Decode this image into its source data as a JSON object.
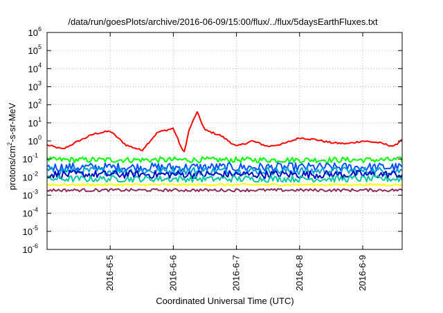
{
  "chart_data": {
    "type": "line",
    "title": "/data/run/goesPlots/archive/2016-06-09/15:00/flux/../flux/5daysEarthFluxes.txt",
    "xlabel": "Coordinated Universal Time (UTC)",
    "ylabel_base": "protons/cm",
    "ylabel_sup": "2",
    "ylabel_rest": "-s-sr-MeV",
    "y_scale": "log",
    "ylim": [
      1e-06,
      1000000
    ],
    "y_tick_exponents": [
      -6,
      -5,
      -4,
      -3,
      -2,
      -1,
      0,
      1,
      2,
      3,
      4,
      5,
      6
    ],
    "y_tick_base": "10",
    "xlim": [
      "2016-06-04 00:00",
      "2016-06-09 15:00"
    ],
    "x_ticks": [
      {
        "label": "2016-6-5",
        "value": "2016-06-05"
      },
      {
        "label": "2016-6-6",
        "value": "2016-06-06"
      },
      {
        "label": "2016-6-7",
        "value": "2016-06-07"
      },
      {
        "label": "2016-6-8",
        "value": "2016-06-08"
      },
      {
        "label": "2016-6-9",
        "value": "2016-06-09"
      }
    ],
    "grid": true,
    "legend": false,
    "series": [
      {
        "color": "#ff0000",
        "x": [
          "2016-06-04 00:00",
          "2016-06-04 06:00",
          "2016-06-04 12:00",
          "2016-06-04 18:00",
          "2016-06-05 00:00",
          "2016-06-05 06:00",
          "2016-06-05 12:00",
          "2016-06-05 18:00",
          "2016-06-06 00:00",
          "2016-06-06 04:00",
          "2016-06-06 06:00",
          "2016-06-06 09:00",
          "2016-06-06 12:00",
          "2016-06-06 18:00",
          "2016-06-07 00:00",
          "2016-06-07 06:00",
          "2016-06-07 12:00",
          "2016-06-07 18:00",
          "2016-06-08 00:00",
          "2016-06-08 06:00",
          "2016-06-08 12:00",
          "2016-06-08 18:00",
          "2016-06-09 00:00",
          "2016-06-09 06:00",
          "2016-06-09 12:00",
          "2016-06-09 15:00"
        ],
        "y": [
          0.6,
          0.35,
          1.0,
          2.5,
          3.5,
          0.6,
          0.3,
          3.0,
          5.0,
          0.2,
          4.0,
          40.0,
          4.0,
          2.0,
          0.5,
          1.0,
          0.5,
          0.7,
          1.5,
          1.2,
          0.8,
          0.7,
          1.0,
          0.8,
          0.5,
          1.3
        ]
      },
      {
        "color": "#00ff00",
        "x": [
          "2016-06-04 00:00",
          "2016-06-09 15:00"
        ],
        "y": [
          0.09,
          0.09
        ],
        "noise": 0.16
      },
      {
        "color": "#0050ff",
        "x": [
          "2016-06-04 00:00",
          "2016-06-09 15:00"
        ],
        "y": [
          0.035,
          0.035
        ],
        "noise": 0.25
      },
      {
        "color": "#00a0d0",
        "x": [
          "2016-06-04 00:00",
          "2016-06-09 15:00"
        ],
        "y": [
          0.022,
          0.022
        ],
        "noise": 0.22
      },
      {
        "color": "#0000c8",
        "x": [
          "2016-06-04 00:00",
          "2016-06-09 15:00"
        ],
        "y": [
          0.014,
          0.014
        ],
        "noise": 0.22
      },
      {
        "color": "#00c8a0",
        "x": [
          "2016-06-04 00:00",
          "2016-06-09 15:00"
        ],
        "y": [
          0.008,
          0.008
        ],
        "noise": 0.18
      },
      {
        "color": "#ffff00",
        "x": [
          "2016-06-04 00:00",
          "2016-06-09 15:00"
        ],
        "y": [
          0.0038,
          0.0038
        ],
        "noise": 0.06
      },
      {
        "color": "#8b2a5a",
        "x": [
          "2016-06-04 00:00",
          "2016-06-09 15:00"
        ],
        "y": [
          0.0019,
          0.0019
        ],
        "noise": 0.08
      }
    ]
  }
}
